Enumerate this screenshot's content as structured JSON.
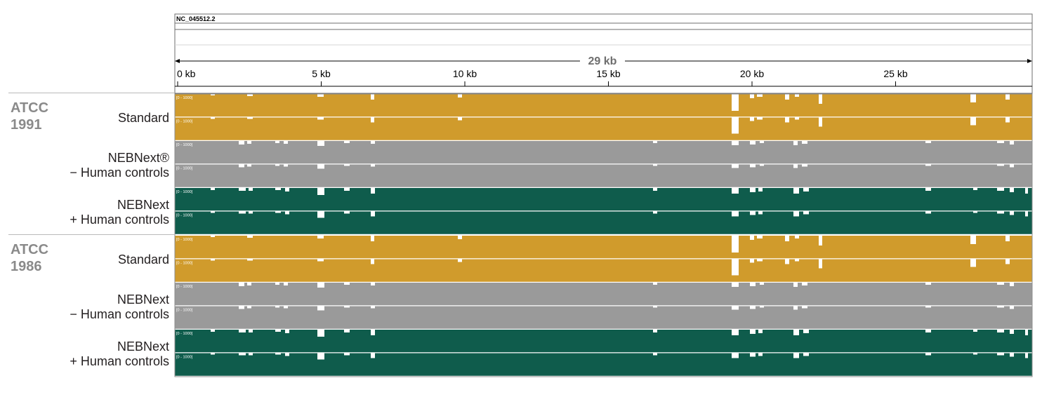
{
  "genome": {
    "accession": "NC_045512.2",
    "span_label": "29 kb",
    "tick_labels": [
      "0 kb",
      "5 kb",
      "10 kb",
      "15 kb",
      "20 kb",
      "25 kb"
    ],
    "tick_values_kb": [
      0,
      5,
      10,
      15,
      20,
      25
    ],
    "length_kb": 29.9
  },
  "track_range_label": "[0 - 1000]",
  "colors": {
    "standard": "#d09b2c",
    "neb_minus": "#9a9a9a",
    "neb_plus": "#0f5c4c"
  },
  "groups": [
    {
      "name_line1": "ATCC",
      "name_line2": "1991",
      "rows": [
        {
          "line1": "",
          "line2": "Standard",
          "color": "standard",
          "tracks": 2
        },
        {
          "line1": "NEBNext®",
          "line2": "− Human controls",
          "color": "neb_minus",
          "tracks": 2
        },
        {
          "line1": "NEBNext",
          "line2": "+ Human controls",
          "color": "neb_plus",
          "tracks": 2
        }
      ]
    },
    {
      "name_line1": "ATCC",
      "name_line2": "1986",
      "rows": [
        {
          "line1": "",
          "line2": "Standard",
          "color": "standard",
          "tracks": 2
        },
        {
          "line1": "NEBNext",
          "line2": "− Human controls",
          "color": "neb_minus",
          "tracks": 2
        },
        {
          "line1": "NEBNext",
          "line2": "+ Human controls",
          "color": "neb_plus",
          "tracks": 2
        }
      ]
    }
  ]
}
